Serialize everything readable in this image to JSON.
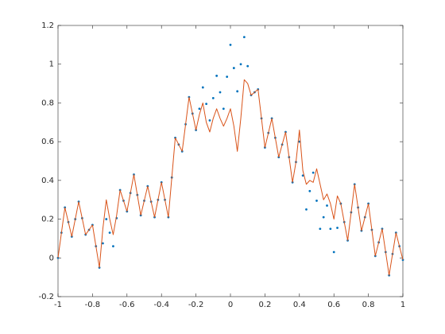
{
  "chart_data": {
    "type": "line",
    "x": [
      -1,
      -0.98,
      -0.96,
      -0.94,
      -0.92,
      -0.9,
      -0.88,
      -0.86,
      -0.84,
      -0.82,
      -0.8,
      -0.78,
      -0.76,
      -0.74,
      -0.72,
      -0.7,
      -0.68,
      -0.66,
      -0.64,
      -0.62,
      -0.6,
      -0.58,
      -0.56,
      -0.54,
      -0.52,
      -0.5,
      -0.48,
      -0.46,
      -0.44,
      -0.42,
      -0.4,
      -0.38,
      -0.36,
      -0.34,
      -0.32,
      -0.3,
      -0.28,
      -0.26,
      -0.24,
      -0.22,
      -0.2,
      -0.18,
      -0.16,
      -0.14,
      -0.12,
      -0.1,
      -0.08,
      -0.06,
      -0.04,
      -0.02,
      0,
      0.02,
      0.04,
      0.06,
      0.08,
      0.1,
      0.12,
      0.14,
      0.16,
      0.18,
      0.2,
      0.22,
      0.24,
      0.26,
      0.28,
      0.3,
      0.32,
      0.34,
      0.36,
      0.38,
      0.4,
      0.42,
      0.44,
      0.46,
      0.48,
      0.5,
      0.52,
      0.54,
      0.56,
      0.58,
      0.6,
      0.62,
      0.64,
      0.66,
      0.68,
      0.7,
      0.72,
      0.74,
      0.76,
      0.78,
      0.8,
      0.82,
      0.84,
      0.86,
      0.88,
      0.9,
      0.92,
      0.94,
      0.96,
      0.98,
      1
    ],
    "series": [
      {
        "mode": "markers",
        "color": "#0072bd",
        "values": [
          0,
          0.13,
          0.26,
          0.185,
          0.11,
          0.2,
          0.29,
          0.205,
          0.12,
          0.145,
          0.17,
          0.06,
          -0.05,
          0.075,
          0.2,
          0.13,
          0.06,
          0.205,
          0.35,
          0.295,
          0.24,
          0.335,
          0.43,
          0.325,
          0.22,
          0.295,
          0.37,
          0.29,
          0.21,
          0.3,
          0.39,
          0.3,
          0.21,
          0.415,
          0.62,
          0.585,
          0.55,
          0.69,
          0.83,
          0.745,
          0.66,
          0.77,
          0.88,
          0.795,
          0.71,
          0.825,
          0.94,
          0.855,
          0.77,
          0.935,
          1.1,
          0.98,
          0.86,
          1,
          1.14,
          0.99,
          0.84,
          0.855,
          0.87,
          0.72,
          0.57,
          0.645,
          0.72,
          0.62,
          0.52,
          0.585,
          0.65,
          0.52,
          0.39,
          0.495,
          0.6,
          0.425,
          0.25,
          0.345,
          0.44,
          0.295,
          0.15,
          0.21,
          0.27,
          0.15,
          0.03,
          0.155,
          0.28,
          0.185,
          0.09,
          0.235,
          0.38,
          0.26,
          0.14,
          0.21,
          0.28,
          0.145,
          0.01,
          0.08,
          0.15,
          0.03,
          -0.09,
          0.02,
          0.13,
          0.06,
          -0.01
        ]
      },
      {
        "mode": "lines",
        "color": "#d95319",
        "values": [
          0,
          0.13,
          0.26,
          0.185,
          0.11,
          0.2,
          0.29,
          0.205,
          0.12,
          0.145,
          0.17,
          0.06,
          -0.05,
          0.15,
          0.3,
          0.2,
          0.12,
          0.22,
          0.35,
          0.295,
          0.24,
          0.335,
          0.43,
          0.325,
          0.22,
          0.295,
          0.37,
          0.29,
          0.21,
          0.3,
          0.39,
          0.3,
          0.21,
          0.415,
          0.62,
          0.585,
          0.55,
          0.69,
          0.83,
          0.745,
          0.66,
          0.74,
          0.8,
          0.7,
          0.65,
          0.72,
          0.77,
          0.72,
          0.68,
          0.72,
          0.77,
          0.68,
          0.55,
          0.72,
          0.92,
          0.9,
          0.84,
          0.855,
          0.87,
          0.72,
          0.57,
          0.645,
          0.72,
          0.62,
          0.52,
          0.585,
          0.65,
          0.52,
          0.39,
          0.495,
          0.66,
          0.45,
          0.38,
          0.4,
          0.39,
          0.46,
          0.38,
          0.3,
          0.33,
          0.28,
          0.2,
          0.32,
          0.28,
          0.185,
          0.09,
          0.235,
          0.38,
          0.26,
          0.14,
          0.21,
          0.28,
          0.145,
          0.01,
          0.08,
          0.15,
          0.03,
          -0.09,
          0.02,
          0.13,
          0.06,
          -0.01
        ]
      }
    ],
    "xlim": [
      -1,
      1
    ],
    "xticks": [
      -1,
      -0.8,
      -0.6,
      -0.4,
      -0.2,
      0,
      0.2,
      0.4,
      0.6,
      0.8,
      1
    ],
    "ylim": [
      -0.2,
      1.2
    ],
    "yticks": [
      -0.2,
      0,
      0.2,
      0.4,
      0.6,
      0.8,
      1,
      1.2
    ],
    "grid": false
  }
}
